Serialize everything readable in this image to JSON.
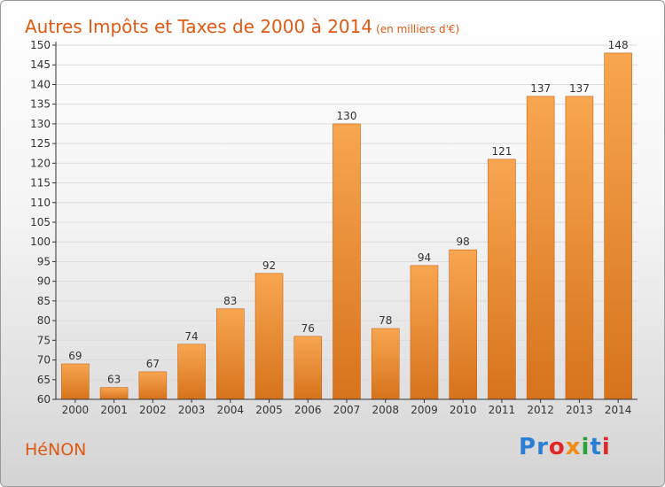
{
  "header": {
    "title": "Autres Impôts et Taxes de 2000 à 2014",
    "unit": "(en milliers d'€)"
  },
  "footer": {
    "commune": "HéNON",
    "brand_letters": [
      {
        "char": "P",
        "color": "#2a7fd4"
      },
      {
        "char": "r",
        "color": "#2a7fd4"
      },
      {
        "char": "o",
        "color": "#e02828"
      },
      {
        "char": "x",
        "color": "#f08c14"
      },
      {
        "char": "i",
        "color": "#2aa43a"
      },
      {
        "char": "t",
        "color": "#2a7fd4"
      },
      {
        "char": "i",
        "color": "#e02828"
      }
    ]
  },
  "chart_data": {
    "type": "bar",
    "title": "Autres Impôts et Taxes de 2000 à 2014",
    "subtitle": "(en milliers d'€)",
    "xlabel": "",
    "ylabel": "",
    "categories": [
      "2000",
      "2001",
      "2002",
      "2003",
      "2004",
      "2005",
      "2006",
      "2007",
      "2008",
      "2009",
      "2010",
      "2011",
      "2012",
      "2013",
      "2014"
    ],
    "values": [
      69,
      63,
      67,
      74,
      83,
      92,
      76,
      130,
      78,
      94,
      98,
      121,
      137,
      137,
      148
    ],
    "ylim": [
      60,
      150
    ],
    "yticks": [
      60,
      65,
      70,
      75,
      80,
      85,
      90,
      95,
      100,
      105,
      110,
      115,
      120,
      125,
      130,
      135,
      140,
      145,
      150
    ],
    "grid": true,
    "legend": "none",
    "colors": {
      "bar_light": "#f8a650",
      "bar_dark": "#d6731c",
      "bar_edge": "#c96418",
      "grid": "#dcdcdc",
      "axis": "#333333",
      "text": "#333333"
    }
  }
}
